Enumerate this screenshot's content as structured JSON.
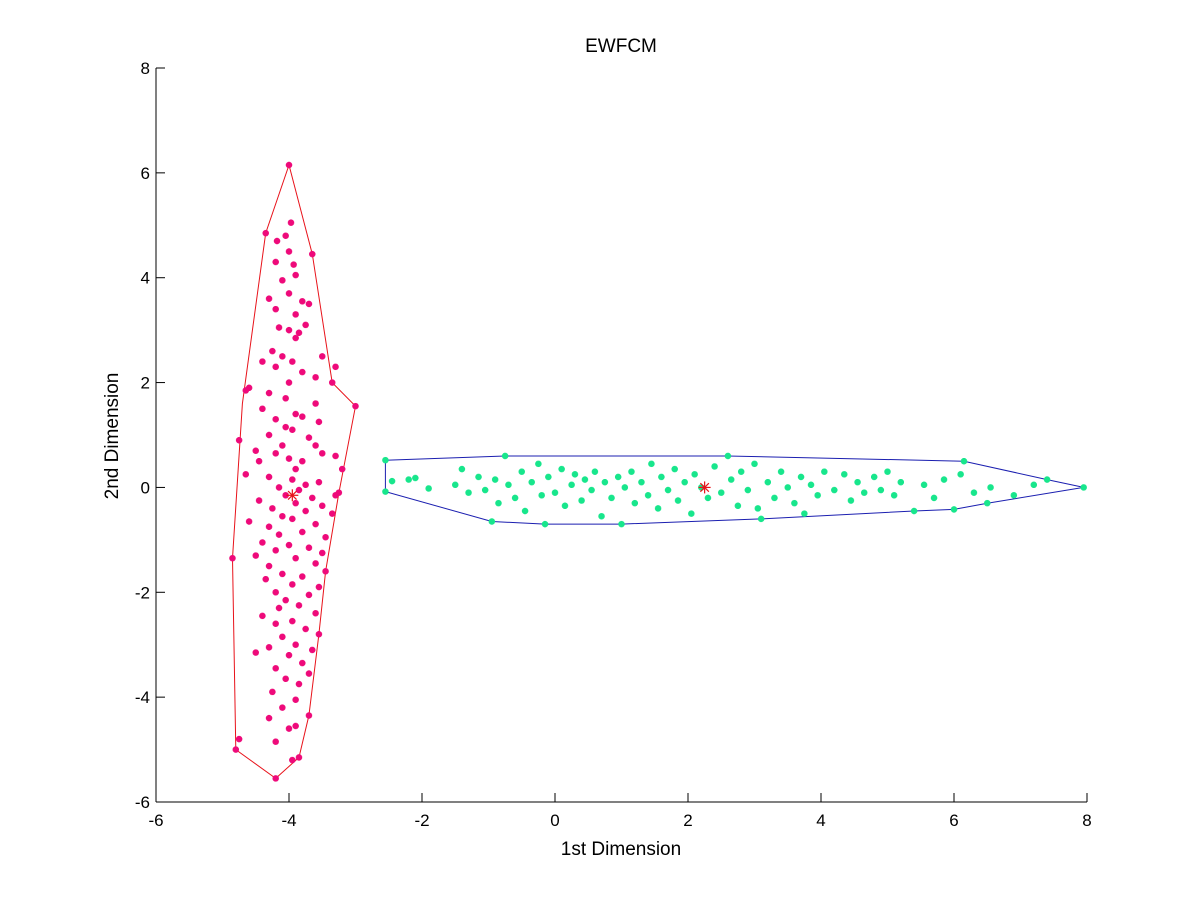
{
  "chart_data": {
    "type": "scatter",
    "title": "EWFCM",
    "xlabel": "1st Dimension",
    "ylabel": "2nd Dimension",
    "xlim": [
      -6,
      8
    ],
    "ylim": [
      -6,
      8
    ],
    "xticks": [
      -6,
      -4,
      -2,
      0,
      2,
      4,
      6,
      8
    ],
    "yticks": [
      -6,
      -4,
      -2,
      0,
      2,
      4,
      6,
      8
    ],
    "xtick_labels": [
      "-6",
      "-4",
      "-2",
      "0",
      "2",
      "4",
      "6",
      "8"
    ],
    "ytick_labels": [
      "-6",
      "-4",
      "-2",
      "0",
      "2",
      "4",
      "6",
      "8"
    ],
    "grid": false,
    "legend": "none",
    "series": [
      {
        "color": "#ee0a7a",
        "marker": "asterisk",
        "hull_color": "#e8121a",
        "center": [
          -3.95,
          -0.15
        ],
        "center_color": "#e8121a",
        "hull": [
          [
            -4.0,
            6.15
          ],
          [
            -3.65,
            4.45
          ],
          [
            -3.35,
            2.0
          ],
          [
            -3.0,
            1.55
          ],
          [
            -3.25,
            -0.1
          ],
          [
            -3.45,
            -1.6
          ],
          [
            -3.55,
            -2.8
          ],
          [
            -3.7,
            -4.35
          ],
          [
            -3.85,
            -5.15
          ],
          [
            -4.2,
            -5.55
          ],
          [
            -4.8,
            -5.0
          ],
          [
            -4.85,
            -1.35
          ],
          [
            -4.7,
            1.6
          ],
          [
            -4.35,
            4.85
          ],
          [
            -4.0,
            6.15
          ]
        ],
        "points": [
          [
            -4.0,
            6.15
          ],
          [
            -3.97,
            5.05
          ],
          [
            -4.05,
            4.8
          ],
          [
            -4.35,
            4.85
          ],
          [
            -4.18,
            4.7
          ],
          [
            -3.65,
            4.45
          ],
          [
            -4.0,
            4.5
          ],
          [
            -3.93,
            4.25
          ],
          [
            -4.2,
            4.3
          ],
          [
            -3.9,
            4.05
          ],
          [
            -4.1,
            3.95
          ],
          [
            -4.3,
            3.6
          ],
          [
            -4.0,
            3.7
          ],
          [
            -3.8,
            3.55
          ],
          [
            -3.7,
            3.5
          ],
          [
            -4.2,
            3.4
          ],
          [
            -3.9,
            3.3
          ],
          [
            -4.15,
            3.05
          ],
          [
            -4.0,
            3.0
          ],
          [
            -3.85,
            2.95
          ],
          [
            -3.75,
            3.1
          ],
          [
            -3.9,
            2.85
          ],
          [
            -4.25,
            2.6
          ],
          [
            -4.1,
            2.5
          ],
          [
            -3.95,
            2.4
          ],
          [
            -3.5,
            2.5
          ],
          [
            -3.3,
            2.3
          ],
          [
            -4.4,
            2.4
          ],
          [
            -4.2,
            2.3
          ],
          [
            -3.8,
            2.2
          ],
          [
            -3.6,
            2.1
          ],
          [
            -4.6,
            1.9
          ],
          [
            -4.0,
            2.0
          ],
          [
            -3.35,
            2.0
          ],
          [
            -4.65,
            1.85
          ],
          [
            -4.3,
            1.8
          ],
          [
            -4.05,
            1.7
          ],
          [
            -3.6,
            1.6
          ],
          [
            -3.0,
            1.55
          ],
          [
            -4.4,
            1.5
          ],
          [
            -3.9,
            1.4
          ],
          [
            -3.8,
            1.35
          ],
          [
            -4.2,
            1.3
          ],
          [
            -3.55,
            1.25
          ],
          [
            -4.05,
            1.15
          ],
          [
            -3.95,
            1.1
          ],
          [
            -4.3,
            1.0
          ],
          [
            -3.7,
            0.95
          ],
          [
            -4.75,
            0.9
          ],
          [
            -4.1,
            0.8
          ],
          [
            -3.6,
            0.8
          ],
          [
            -4.5,
            0.7
          ],
          [
            -4.2,
            0.65
          ],
          [
            -3.5,
            0.65
          ],
          [
            -3.3,
            0.6
          ],
          [
            -4.0,
            0.55
          ],
          [
            -4.45,
            0.5
          ],
          [
            -3.8,
            0.5
          ],
          [
            -3.9,
            0.35
          ],
          [
            -3.2,
            0.35
          ],
          [
            -4.65,
            0.25
          ],
          [
            -4.3,
            0.2
          ],
          [
            -3.95,
            0.15
          ],
          [
            -3.55,
            0.1
          ],
          [
            -3.75,
            0.05
          ],
          [
            -4.15,
            0.0
          ],
          [
            -3.85,
            -0.05
          ],
          [
            -3.25,
            -0.1
          ],
          [
            -3.3,
            -0.15
          ],
          [
            -4.05,
            -0.15
          ],
          [
            -3.65,
            -0.2
          ],
          [
            -4.45,
            -0.25
          ],
          [
            -3.9,
            -0.3
          ],
          [
            -3.5,
            -0.35
          ],
          [
            -4.25,
            -0.4
          ],
          [
            -3.75,
            -0.45
          ],
          [
            -3.35,
            -0.5
          ],
          [
            -4.1,
            -0.55
          ],
          [
            -3.95,
            -0.6
          ],
          [
            -4.6,
            -0.65
          ],
          [
            -3.6,
            -0.7
          ],
          [
            -4.3,
            -0.75
          ],
          [
            -3.8,
            -0.85
          ],
          [
            -4.15,
            -0.9
          ],
          [
            -3.45,
            -0.95
          ],
          [
            -4.4,
            -1.05
          ],
          [
            -4.0,
            -1.1
          ],
          [
            -3.7,
            -1.15
          ],
          [
            -4.2,
            -1.2
          ],
          [
            -3.5,
            -1.25
          ],
          [
            -4.85,
            -1.35
          ],
          [
            -4.5,
            -1.3
          ],
          [
            -3.9,
            -1.35
          ],
          [
            -3.6,
            -1.45
          ],
          [
            -4.3,
            -1.5
          ],
          [
            -3.45,
            -1.6
          ],
          [
            -4.1,
            -1.65
          ],
          [
            -3.8,
            -1.7
          ],
          [
            -4.35,
            -1.75
          ],
          [
            -3.95,
            -1.85
          ],
          [
            -3.55,
            -1.9
          ],
          [
            -4.2,
            -2.0
          ],
          [
            -3.7,
            -2.05
          ],
          [
            -4.05,
            -2.15
          ],
          [
            -3.85,
            -2.25
          ],
          [
            -4.15,
            -2.3
          ],
          [
            -3.6,
            -2.4
          ],
          [
            -4.4,
            -2.45
          ],
          [
            -3.95,
            -2.55
          ],
          [
            -4.2,
            -2.6
          ],
          [
            -3.75,
            -2.7
          ],
          [
            -3.55,
            -2.8
          ],
          [
            -4.1,
            -2.85
          ],
          [
            -3.9,
            -3.0
          ],
          [
            -4.3,
            -3.05
          ],
          [
            -3.65,
            -3.1
          ],
          [
            -4.0,
            -3.2
          ],
          [
            -4.5,
            -3.15
          ],
          [
            -3.8,
            -3.35
          ],
          [
            -4.2,
            -3.45
          ],
          [
            -3.7,
            -3.55
          ],
          [
            -4.05,
            -3.65
          ],
          [
            -3.85,
            -3.75
          ],
          [
            -4.25,
            -3.9
          ],
          [
            -3.9,
            -4.05
          ],
          [
            -3.7,
            -4.35
          ],
          [
            -4.1,
            -4.2
          ],
          [
            -4.3,
            -4.4
          ],
          [
            -4.0,
            -4.6
          ],
          [
            -3.9,
            -4.55
          ],
          [
            -4.75,
            -4.8
          ],
          [
            -4.8,
            -5.0
          ],
          [
            -4.2,
            -4.85
          ],
          [
            -3.85,
            -5.15
          ],
          [
            -3.95,
            -5.2
          ],
          [
            -4.2,
            -5.55
          ]
        ]
      },
      {
        "color": "#18e68c",
        "marker": "asterisk",
        "hull_color": "#1b1fb0",
        "center": [
          2.25,
          0.0
        ],
        "center_color": "#e8121a",
        "hull": [
          [
            -2.55,
            0.52
          ],
          [
            -0.75,
            0.6
          ],
          [
            2.6,
            0.6
          ],
          [
            6.15,
            0.5
          ],
          [
            7.4,
            0.15
          ],
          [
            7.95,
            0.0
          ],
          [
            6.5,
            -0.3
          ],
          [
            6.0,
            -0.42
          ],
          [
            5.4,
            -0.45
          ],
          [
            3.1,
            -0.6
          ],
          [
            1.0,
            -0.7
          ],
          [
            -0.15,
            -0.7
          ],
          [
            -0.95,
            -0.65
          ],
          [
            -2.55,
            -0.08
          ],
          [
            -2.55,
            0.52
          ]
        ],
        "points": [
          [
            -2.55,
            0.52
          ],
          [
            -2.55,
            -0.08
          ],
          [
            -2.45,
            0.12
          ],
          [
            -2.2,
            0.15
          ],
          [
            -2.1,
            0.18
          ],
          [
            -1.9,
            -0.02
          ],
          [
            -1.5,
            0.05
          ],
          [
            -1.4,
            0.35
          ],
          [
            -1.3,
            -0.1
          ],
          [
            -1.15,
            0.2
          ],
          [
            -1.05,
            -0.05
          ],
          [
            -0.95,
            -0.65
          ],
          [
            -0.9,
            0.15
          ],
          [
            -0.85,
            -0.3
          ],
          [
            -0.75,
            0.6
          ],
          [
            -0.7,
            0.05
          ],
          [
            -0.6,
            -0.2
          ],
          [
            -0.5,
            0.3
          ],
          [
            -0.45,
            -0.45
          ],
          [
            -0.35,
            0.1
          ],
          [
            -0.25,
            0.45
          ],
          [
            -0.2,
            -0.15
          ],
          [
            -0.15,
            -0.7
          ],
          [
            -0.1,
            0.2
          ],
          [
            0.0,
            -0.1
          ],
          [
            0.1,
            0.35
          ],
          [
            0.15,
            -0.35
          ],
          [
            0.25,
            0.05
          ],
          [
            0.3,
            0.25
          ],
          [
            0.4,
            -0.25
          ],
          [
            0.45,
            0.15
          ],
          [
            0.55,
            -0.05
          ],
          [
            0.6,
            0.3
          ],
          [
            0.7,
            -0.55
          ],
          [
            0.75,
            0.1
          ],
          [
            0.85,
            -0.2
          ],
          [
            0.95,
            0.2
          ],
          [
            1.0,
            -0.7
          ],
          [
            1.05,
            0.0
          ],
          [
            1.15,
            0.3
          ],
          [
            1.2,
            -0.3
          ],
          [
            1.3,
            0.1
          ],
          [
            1.4,
            -0.15
          ],
          [
            1.45,
            0.45
          ],
          [
            1.55,
            -0.4
          ],
          [
            1.6,
            0.2
          ],
          [
            1.7,
            -0.05
          ],
          [
            1.8,
            0.35
          ],
          [
            1.85,
            -0.25
          ],
          [
            1.95,
            0.1
          ],
          [
            2.05,
            -0.5
          ],
          [
            2.1,
            0.25
          ],
          [
            2.2,
            0.0
          ],
          [
            2.3,
            -0.2
          ],
          [
            2.4,
            0.4
          ],
          [
            2.5,
            -0.1
          ],
          [
            2.6,
            0.6
          ],
          [
            2.65,
            0.15
          ],
          [
            2.75,
            -0.35
          ],
          [
            2.8,
            0.3
          ],
          [
            2.9,
            -0.05
          ],
          [
            3.0,
            0.45
          ],
          [
            3.05,
            -0.4
          ],
          [
            3.1,
            -0.6
          ],
          [
            3.2,
            0.1
          ],
          [
            3.3,
            -0.2
          ],
          [
            3.4,
            0.3
          ],
          [
            3.5,
            0.0
          ],
          [
            3.6,
            -0.3
          ],
          [
            3.7,
            0.2
          ],
          [
            3.75,
            -0.5
          ],
          [
            3.85,
            0.05
          ],
          [
            3.95,
            -0.15
          ],
          [
            4.05,
            0.3
          ],
          [
            4.2,
            -0.05
          ],
          [
            4.35,
            0.25
          ],
          [
            4.45,
            -0.25
          ],
          [
            4.55,
            0.1
          ],
          [
            4.65,
            -0.1
          ],
          [
            4.8,
            0.2
          ],
          [
            4.9,
            -0.05
          ],
          [
            5.0,
            0.3
          ],
          [
            5.1,
            -0.15
          ],
          [
            5.2,
            0.1
          ],
          [
            5.4,
            -0.45
          ],
          [
            5.55,
            0.05
          ],
          [
            5.7,
            -0.2
          ],
          [
            5.85,
            0.15
          ],
          [
            6.0,
            -0.42
          ],
          [
            6.1,
            0.25
          ],
          [
            6.15,
            0.5
          ],
          [
            6.3,
            -0.1
          ],
          [
            6.5,
            -0.3
          ],
          [
            6.55,
            0.0
          ],
          [
            6.9,
            -0.15
          ],
          [
            7.2,
            0.05
          ],
          [
            7.4,
            0.15
          ],
          [
            7.95,
            0.0
          ]
        ]
      }
    ]
  }
}
